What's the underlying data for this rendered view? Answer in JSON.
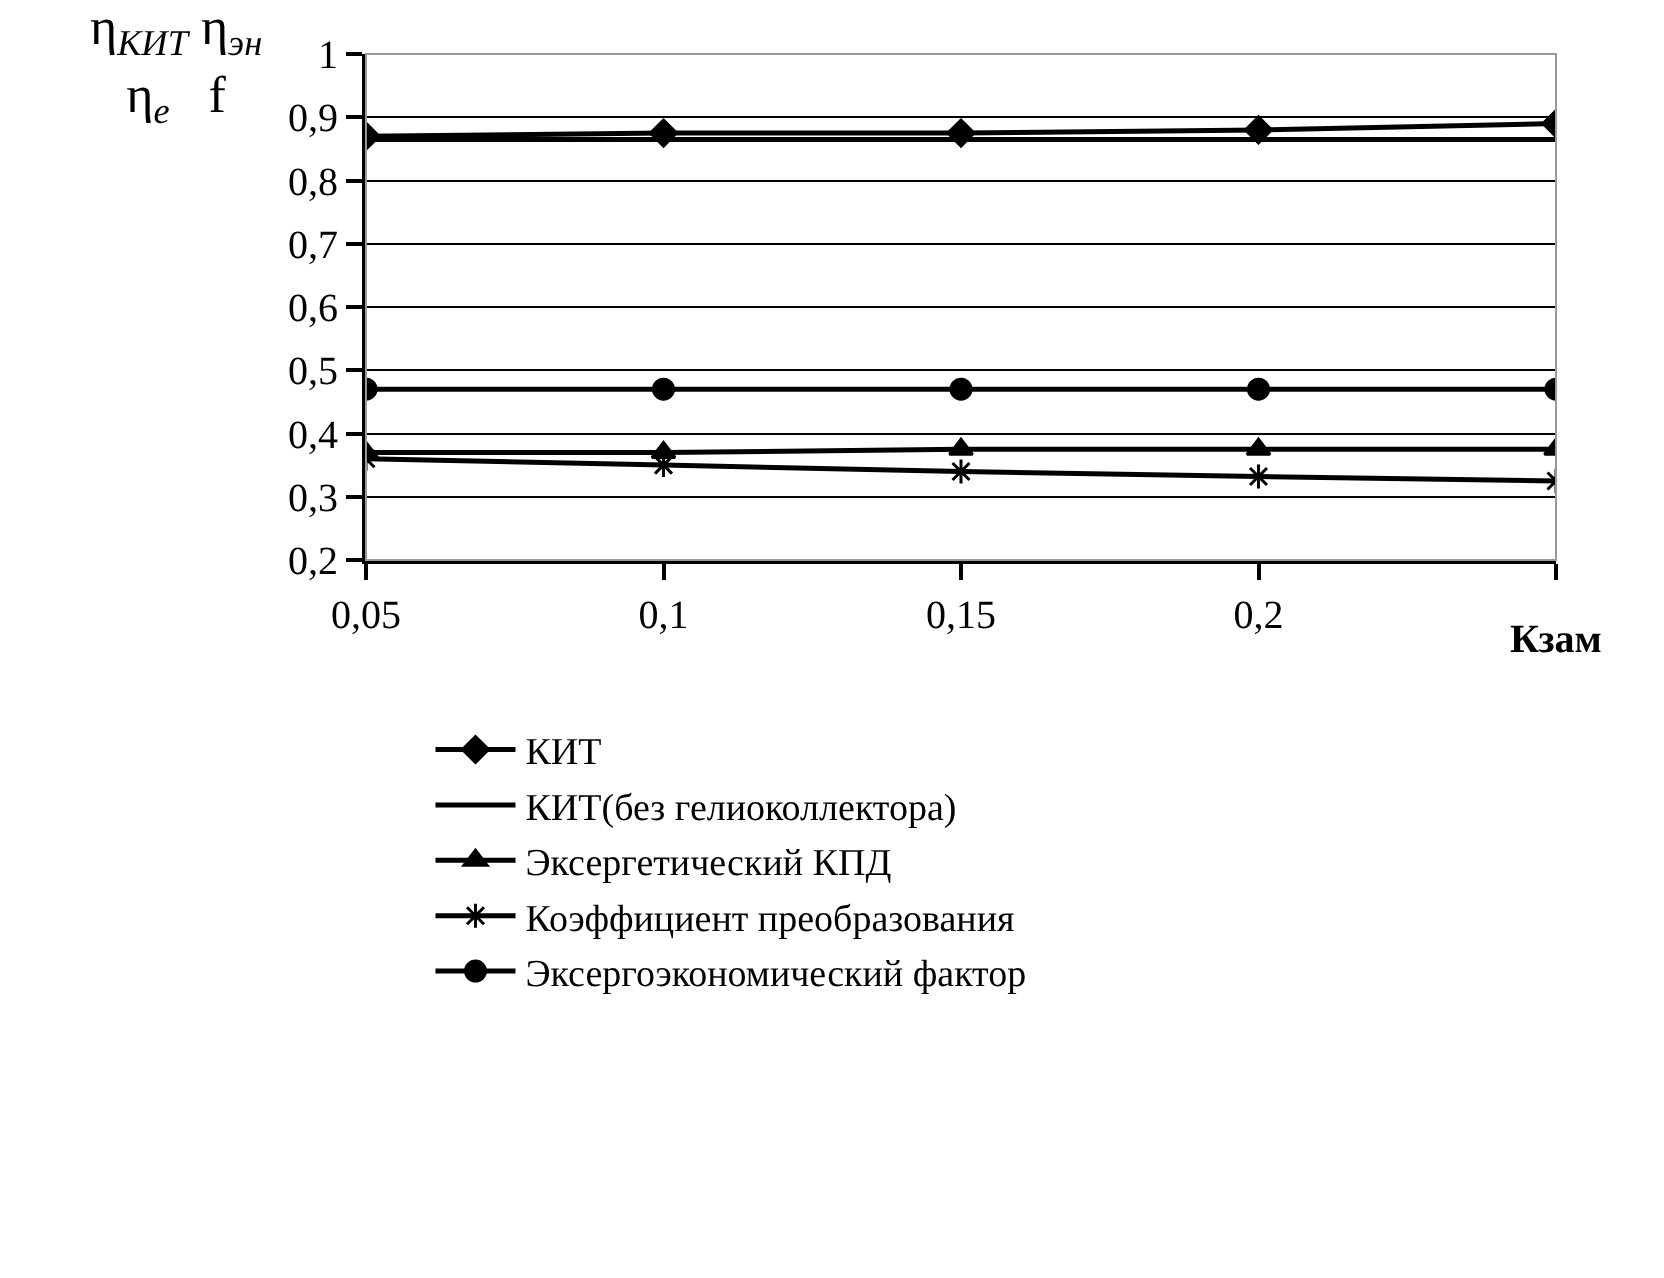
{
  "chart_data": {
    "type": "line",
    "ylabel": "η$_{КИТ}$ η$_{эн}$\nη$_{e}$   f",
    "xlabel": "Кзам",
    "x": [
      0.05,
      0.1,
      0.15,
      0.2,
      0.25
    ],
    "xlim": [
      0.05,
      0.25
    ],
    "xticks": [
      {
        "value": 0.05,
        "label": "0,05"
      },
      {
        "value": 0.1,
        "label": "0,1"
      },
      {
        "value": 0.15,
        "label": "0,15"
      },
      {
        "value": 0.2,
        "label": "0,2"
      },
      {
        "value": 0.25,
        "label": null
      }
    ],
    "ylim": [
      0.2,
      1
    ],
    "yticks": [
      {
        "value": 0.2,
        "label": "0,2"
      },
      {
        "value": 0.3,
        "label": "0,3"
      },
      {
        "value": 0.4,
        "label": "0,4"
      },
      {
        "value": 0.5,
        "label": "0,5"
      },
      {
        "value": 0.6,
        "label": "0,6"
      },
      {
        "value": 0.7,
        "label": "0,7"
      },
      {
        "value": 0.8,
        "label": "0,8"
      },
      {
        "value": 0.9,
        "label": "0,9"
      },
      {
        "value": 1,
        "label": "1"
      }
    ],
    "grid": "y",
    "legend": "bottom",
    "series": [
      {
        "name": "КИТ",
        "color": "#000000",
        "marker": "diamond",
        "values": [
          0.87,
          0.875,
          0.875,
          0.88,
          0.89
        ]
      },
      {
        "name": "КИТ(без гелиоколлектора)",
        "color": "#000000",
        "marker": "none",
        "values": [
          0.865,
          0.865,
          0.865,
          0.865,
          0.865
        ]
      },
      {
        "name": "Эксергетический КПД",
        "color": "#000000",
        "marker": "triangle",
        "values": [
          0.37,
          0.37,
          0.375,
          0.375,
          0.375
        ]
      },
      {
        "name": "Коэффициент преобразования",
        "color": "#000000",
        "marker": "cross",
        "values": [
          0.36,
          0.35,
          0.34,
          0.332,
          0.325
        ]
      },
      {
        "name": "Эксергоэкономический фактор",
        "color": "#000000",
        "marker": "circle",
        "values": [
          0.47,
          0.47,
          0.47,
          0.47,
          0.47
        ]
      }
    ]
  }
}
